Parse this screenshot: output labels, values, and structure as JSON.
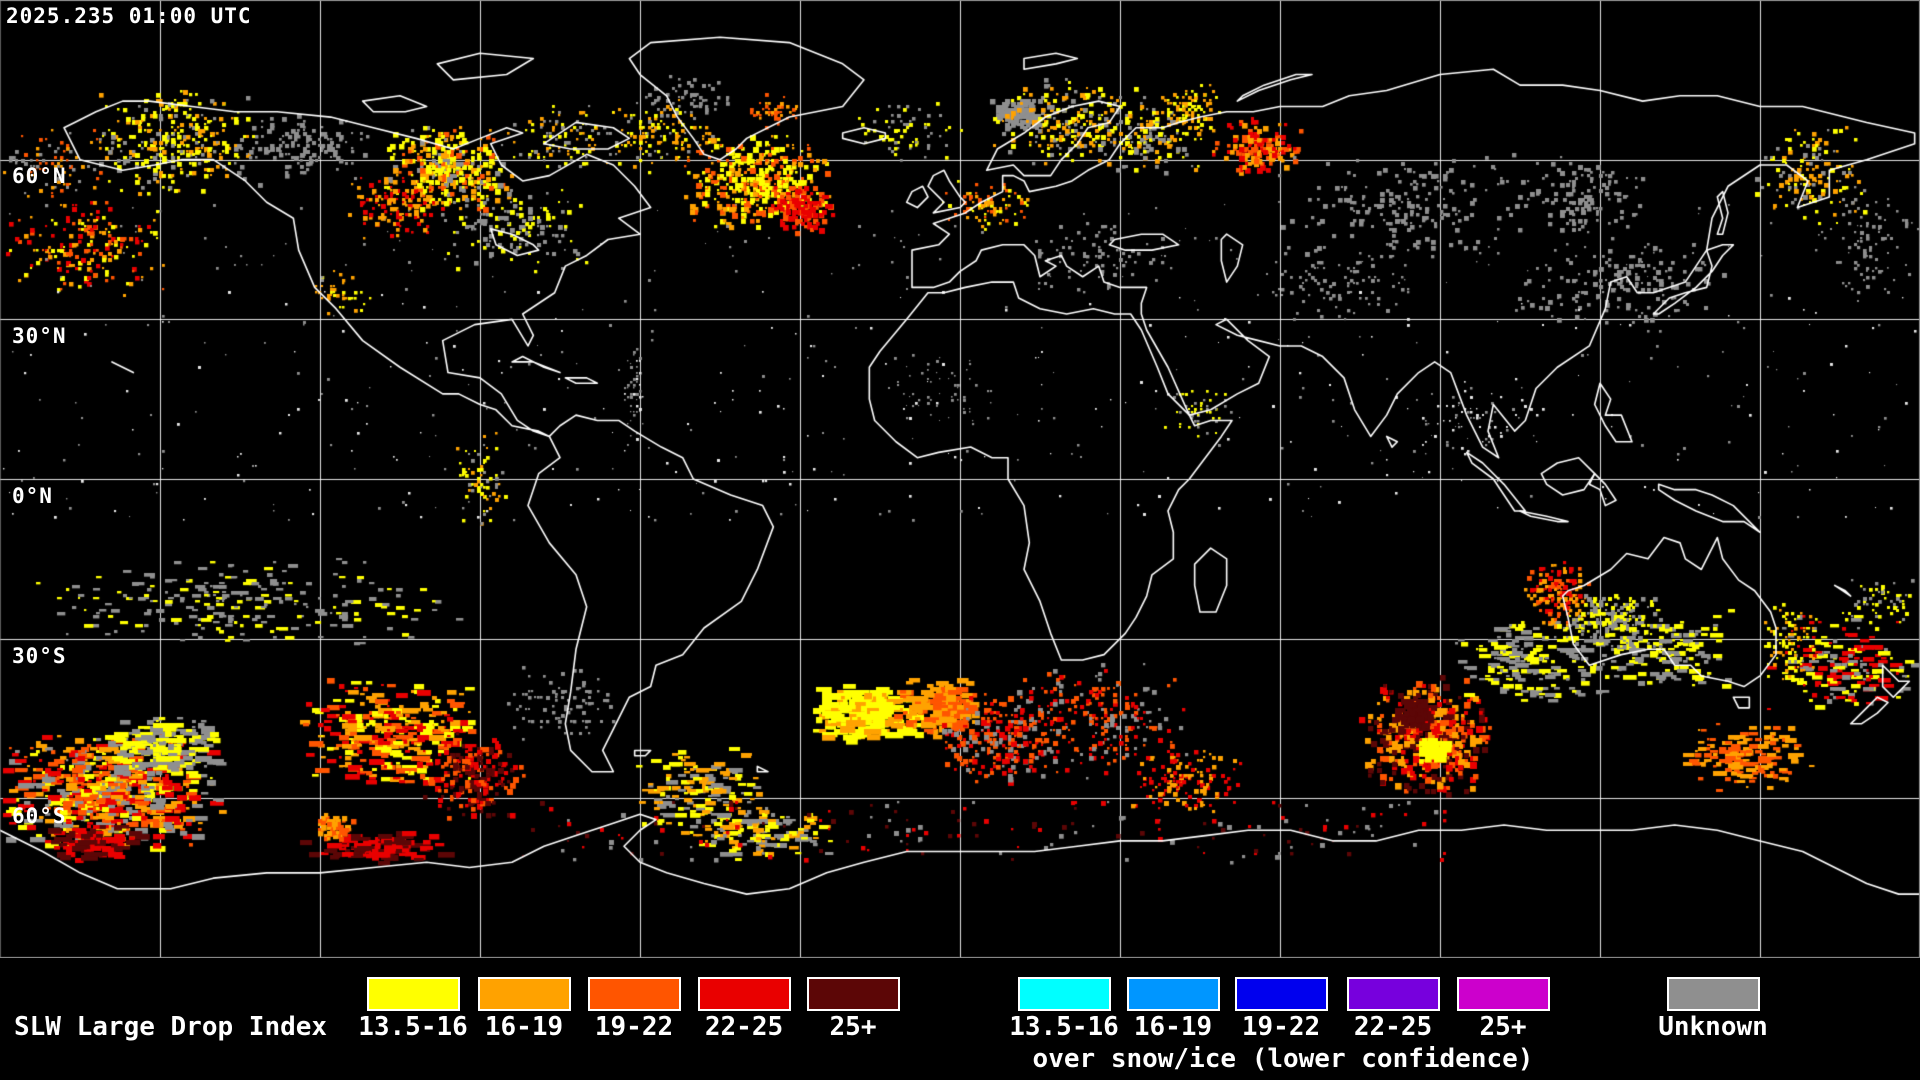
{
  "header": {
    "timestamp": "2025.235 01:00 UTC"
  },
  "map": {
    "gridline_labels": [
      "60°N",
      "30°N",
      "0°N",
      "30°S",
      "60°S"
    ],
    "background": "#000000",
    "coastline_color": "#FFFFFF",
    "gridline_color": "#FFFFFF",
    "border_color": "#999999",
    "sparse_dot_color": "#E8E8E8"
  },
  "legend": {
    "title": "SLW Large Drop Index",
    "primary_items": [
      {
        "label": "13.5-16",
        "color": "#FFFF00"
      },
      {
        "label": "16-19",
        "color": "#FFA200"
      },
      {
        "label": "19-22",
        "color": "#FF5500"
      },
      {
        "label": "22-25",
        "color": "#E90000"
      },
      {
        "label": "25+",
        "color": "#5C0606"
      }
    ],
    "snow_ice_items": [
      {
        "label": "13.5-16",
        "color": "#00FFFF"
      },
      {
        "label": "16-19",
        "color": "#0096FF"
      },
      {
        "label": "19-22",
        "color": "#0000EE"
      },
      {
        "label": "22-25",
        "color": "#7700DD"
      },
      {
        "label": "25+",
        "color": "#CC00CC"
      }
    ],
    "snow_ice_caption": "over snow/ice (lower confidence)",
    "unknown_item": {
      "label": "Unknown",
      "color": "#8F8F8F"
    }
  }
}
